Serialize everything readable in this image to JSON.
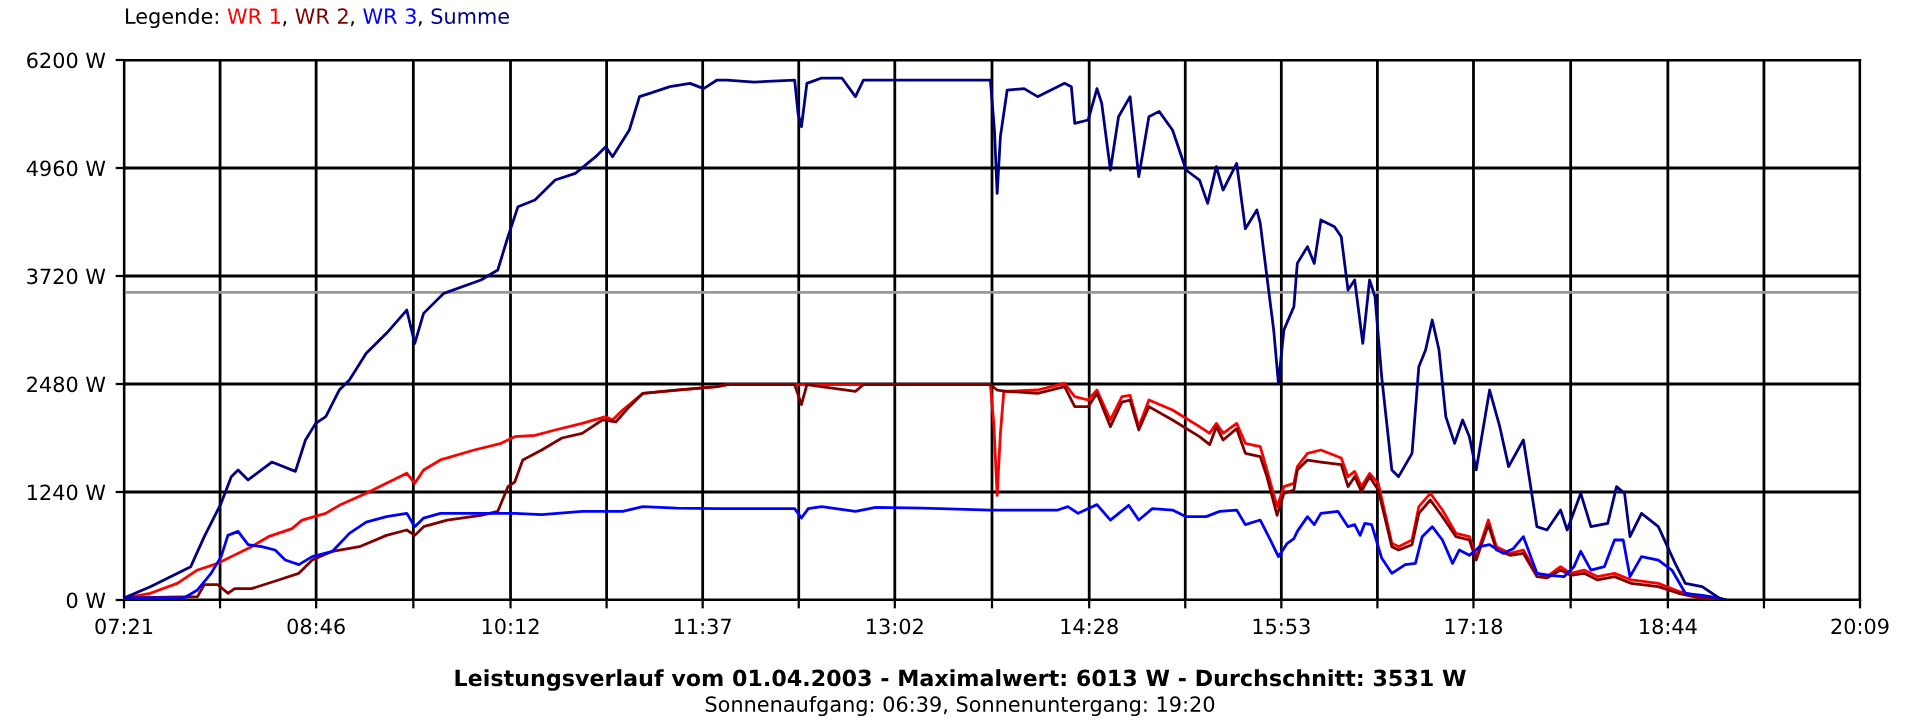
{
  "chart_data": {
    "type": "line",
    "title": "Leistungsverlauf vom 01.04.2003 - Maximalwert: 6013 W - Durchschnitt: 3531 W",
    "subtitle": "Sonnenaufgang: 06:39, Sonnenuntergang: 19:20",
    "legend_title": "Legende:",
    "annotations": [
      ",",
      ",",
      ","
    ],
    "legend": "top left",
    "grid": true,
    "marker": "none",
    "line_style": "solid",
    "xlim": [
      7.35,
      20.15
    ],
    "xticks": [
      {
        "value": 7.35,
        "label": "07:21"
      },
      {
        "value": 8.0583,
        "label": null
      },
      {
        "value": 8.7667,
        "label": "08:46"
      },
      {
        "value": 9.4833,
        "label": null
      },
      {
        "value": 10.2,
        "label": "10:12"
      },
      {
        "value": 10.9083,
        "label": null
      },
      {
        "value": 11.6167,
        "label": "11:37"
      },
      {
        "value": 12.325,
        "label": null
      },
      {
        "value": 13.0333,
        "label": "13:02"
      },
      {
        "value": 13.75,
        "label": null
      },
      {
        "value": 14.4667,
        "label": "14:28"
      },
      {
        "value": 15.175,
        "label": null
      },
      {
        "value": 15.8833,
        "label": "15:53"
      },
      {
        "value": 16.5917,
        "label": null
      },
      {
        "value": 17.3,
        "label": "17:18"
      },
      {
        "value": 18.0167,
        "label": null
      },
      {
        "value": 18.7333,
        "label": "18:44"
      },
      {
        "value": 19.4417,
        "label": null
      },
      {
        "value": 20.15,
        "label": "20:09"
      }
    ],
    "ylim": [
      0,
      6200
    ],
    "yticks": [
      {
        "value": 0,
        "label": "0 W"
      },
      {
        "value": 1240,
        "label": "1240 W"
      },
      {
        "value": 2480,
        "label": "2480 W"
      },
      {
        "value": 3720,
        "label": "3720 W"
      },
      {
        "value": 4960,
        "label": "4960 W"
      },
      {
        "value": 6200,
        "label": "6200 W"
      }
    ],
    "ref_lines": [
      {
        "axis": "y",
        "value": 3531,
        "color": "#999999"
      }
    ],
    "series": [
      {
        "name": "WR 1",
        "color": "#ff0000",
        "x": [
          7.35,
          7.544,
          7.743,
          7.892,
          8.041,
          8.141,
          8.29,
          8.415,
          8.589,
          8.663,
          8.837,
          8.937,
          9.136,
          9.285,
          9.435,
          9.494,
          9.559,
          9.683,
          9.932,
          10.131,
          10.231,
          10.38,
          10.529,
          10.728,
          10.902,
          10.952,
          11.027,
          11.176,
          11.425,
          11.723,
          11.797,
          12.295,
          12.345,
          12.743,
          13.738,
          13.763,
          13.788,
          13.812,
          13.837,
          14.086,
          14.285,
          14.36,
          14.459,
          14.524,
          14.623,
          14.708,
          14.768,
          14.832,
          14.907,
          15.081,
          15.28,
          15.355,
          15.404,
          15.454,
          15.554,
          15.618,
          15.728,
          15.777,
          15.852,
          15.902,
          15.976,
          16.001,
          16.076,
          16.175,
          16.325,
          16.375,
          16.424,
          16.474,
          16.534,
          16.598,
          16.698,
          16.748,
          16.847,
          16.897,
          16.982,
          17.071,
          17.171,
          17.27,
          17.32,
          17.41,
          17.469,
          17.569,
          17.668,
          17.768,
          17.842,
          17.942,
          18.016,
          18.116,
          18.215,
          18.34,
          18.464,
          18.663,
          18.812,
          18.962,
          19.111
        ],
        "values": [
          23,
          77,
          191,
          345,
          421,
          498,
          612,
          727,
          819,
          918,
          995,
          1087,
          1225,
          1340,
          1455,
          1340,
          1493,
          1608,
          1722,
          1799,
          1875,
          1891,
          1952,
          2028,
          2105,
          2067,
          2182,
          2373,
          2411,
          2449,
          2472,
          2472,
          2472,
          2472,
          2472,
          2028,
          1202,
          1914,
          2396,
          2411,
          2488,
          2334,
          2296,
          2411,
          2067,
          2334,
          2350,
          1990,
          2296,
          2181,
          1990,
          1914,
          2028,
          1914,
          2028,
          1799,
          1760,
          1493,
          1072,
          1301,
          1339,
          1531,
          1684,
          1722,
          1630,
          1416,
          1477,
          1301,
          1454,
          1339,
          651,
          612,
          689,
          1072,
          1225,
          1033,
          765,
          727,
          498,
          918,
          612,
          536,
          574,
          306,
          268,
          383,
          306,
          344,
          268,
          306,
          230,
          191,
          100,
          38,
          0
        ]
      },
      {
        "name": "WR 2",
        "color": "#800000",
        "x": [
          7.35,
          7.892,
          7.942,
          8.041,
          8.116,
          8.166,
          8.29,
          8.489,
          8.639,
          8.738,
          8.887,
          9.086,
          9.285,
          9.435,
          9.494,
          9.559,
          9.733,
          9.982,
          10.106,
          10.181,
          10.231,
          10.29,
          10.43,
          10.579,
          10.728,
          10.877,
          10.976,
          11.076,
          11.176,
          11.425,
          11.723,
          11.797,
          12.295,
          12.345,
          12.385,
          12.743,
          12.802,
          13.738,
          13.788,
          13.862,
          14.086,
          14.285,
          14.36,
          14.459,
          14.524,
          14.623,
          14.708,
          14.768,
          14.832,
          14.907,
          15.081,
          15.28,
          15.355,
          15.404,
          15.454,
          15.554,
          15.618,
          15.728,
          15.777,
          15.852,
          15.902,
          15.976,
          16.001,
          16.076,
          16.175,
          16.325,
          16.375,
          16.424,
          16.474,
          16.534,
          16.598,
          16.698,
          16.748,
          16.847,
          16.897,
          16.982,
          17.071,
          17.171,
          17.27,
          17.32,
          17.41,
          17.469,
          17.569,
          17.668,
          17.768,
          17.842,
          17.942,
          18.016,
          18.116,
          18.215,
          18.34,
          18.464,
          18.663,
          18.812,
          18.962,
          19.111
        ],
        "values": [
          23,
          38,
          176,
          176,
          77,
          130,
          130,
          230,
          306,
          459,
          559,
          612,
          742,
          804,
          742,
          842,
          918,
          972,
          1018,
          1301,
          1355,
          1608,
          1722,
          1860,
          1913,
          2067,
          2044,
          2220,
          2373,
          2411,
          2449,
          2472,
          2472,
          2243,
          2472,
          2396,
          2472,
          2472,
          2411,
          2396,
          2373,
          2449,
          2220,
          2220,
          2373,
          1990,
          2273,
          2296,
          1952,
          2220,
          2067,
          1875,
          1783,
          1990,
          1837,
          1967,
          1684,
          1646,
          1416,
          972,
          1225,
          1263,
          1493,
          1607,
          1584,
          1554,
          1301,
          1416,
          1248,
          1416,
          1263,
          612,
          574,
          635,
          995,
          1148,
          957,
          727,
          689,
          459,
          865,
          574,
          513,
          536,
          268,
          253,
          344,
          283,
          306,
          230,
          268,
          191,
          153,
          77,
          23,
          0
        ]
      },
      {
        "name": "WR 3",
        "color": "#0000ff",
        "x": [
          7.35,
          7.793,
          7.892,
          7.992,
          8.066,
          8.116,
          8.191,
          8.265,
          8.365,
          8.464,
          8.539,
          8.639,
          8.738,
          8.887,
          9.012,
          9.136,
          9.285,
          9.435,
          9.494,
          9.559,
          9.683,
          9.982,
          10.231,
          10.43,
          10.728,
          11.027,
          11.176,
          11.425,
          11.723,
          11.797,
          11.996,
          12.295,
          12.345,
          12.395,
          12.494,
          12.743,
          12.892,
          13.24,
          13.738,
          14.235,
          14.31,
          14.385,
          14.524,
          14.623,
          14.758,
          14.832,
          14.932,
          15.081,
          15.181,
          15.329,
          15.429,
          15.554,
          15.618,
          15.728,
          15.802,
          15.862,
          15.927,
          15.976,
          16.001,
          16.076,
          16.126,
          16.175,
          16.3,
          16.375,
          16.424,
          16.464,
          16.499,
          16.549,
          16.623,
          16.698,
          16.797,
          16.872,
          16.922,
          16.996,
          17.071,
          17.146,
          17.195,
          17.27,
          17.345,
          17.419,
          17.519,
          17.593,
          17.668,
          17.768,
          17.867,
          17.967,
          18.041,
          18.091,
          18.166,
          18.265,
          18.34,
          18.404,
          18.454,
          18.539,
          18.663,
          18.763,
          18.862,
          18.986,
          19.111,
          19.161
        ],
        "values": [
          23,
          23,
          115,
          306,
          498,
          742,
          788,
          635,
          612,
          574,
          459,
          406,
          498,
          559,
          765,
          895,
          957,
          995,
          842,
          941,
          995,
          995,
          995,
          980,
          1018,
          1018,
          1071,
          1056,
          1049,
          1049,
          1049,
          1049,
          941,
          1049,
          1072,
          1018,
          1064,
          1056,
          1033,
          1033,
          1072,
          995,
          1095,
          918,
          1087,
          918,
          1049,
          1033,
          957,
          957,
          1018,
          1033,
          865,
          918,
          689,
          498,
          651,
          704,
          788,
          957,
          865,
          995,
          1018,
          842,
          865,
          742,
          880,
          865,
          482,
          306,
          406,
          421,
          727,
          842,
          689,
          421,
          574,
          513,
          612,
          635,
          536,
          589,
          727,
          306,
          283,
          268,
          383,
          559,
          344,
          383,
          689,
          689,
          268,
          498,
          459,
          344,
          77,
          54,
          23,
          0
        ]
      },
      {
        "name": "Summe",
        "color": "#000080",
        "x": [
          7.35,
          7.544,
          7.693,
          7.842,
          7.942,
          8.066,
          8.141,
          8.191,
          8.265,
          8.44,
          8.614,
          8.688,
          8.763,
          8.838,
          8.937,
          9.012,
          9.136,
          9.285,
          9.435,
          9.494,
          9.559,
          9.708,
          9.982,
          10.106,
          10.181,
          10.255,
          10.38,
          10.529,
          10.678,
          10.828,
          10.902,
          10.952,
          11.076,
          11.151,
          11.226,
          11.375,
          11.524,
          11.624,
          11.723,
          11.797,
          11.996,
          12.295,
          12.32,
          12.345,
          12.385,
          12.494,
          12.643,
          12.743,
          12.802,
          13.141,
          13.489,
          13.738,
          13.768,
          13.788,
          13.812,
          13.862,
          13.987,
          14.086,
          14.285,
          14.335,
          14.36,
          14.459,
          14.524,
          14.559,
          14.623,
          14.683,
          14.768,
          14.832,
          14.907,
          14.982,
          15.081,
          15.181,
          15.28,
          15.34,
          15.404,
          15.454,
          15.554,
          15.618,
          15.703,
          15.728,
          15.777,
          15.827,
          15.862,
          15.902,
          15.976,
          16.001,
          16.076,
          16.126,
          16.175,
          16.275,
          16.325,
          16.375,
          16.424,
          16.484,
          16.534,
          16.574,
          16.623,
          16.698,
          16.748,
          16.847,
          16.897,
          16.947,
          16.996,
          17.046,
          17.096,
          17.161,
          17.22,
          17.27,
          17.32,
          17.419,
          17.494,
          17.559,
          17.668,
          17.768,
          17.842,
          17.942,
          17.991,
          18.091,
          18.166,
          18.29,
          18.355,
          18.414,
          18.454,
          18.539,
          18.663,
          18.787,
          18.862,
          18.986,
          19.111,
          19.161
        ],
        "values": [
          23,
          153,
          268,
          383,
          727,
          1110,
          1416,
          1493,
          1378,
          1584,
          1477,
          1837,
          2028,
          2105,
          2411,
          2526,
          2832,
          3062,
          3329,
          2947,
          3291,
          3521,
          3674,
          3789,
          4171,
          4516,
          4592,
          4822,
          4899,
          5090,
          5205,
          5090,
          5396,
          5779,
          5817,
          5894,
          5932,
          5871,
          5970,
          5970,
          5947,
          5970,
          5587,
          5434,
          5932,
          5993,
          5993,
          5779,
          5970,
          5970,
          5970,
          5970,
          5396,
          4669,
          5320,
          5855,
          5871,
          5779,
          5932,
          5894,
          5473,
          5511,
          5871,
          5702,
          4937,
          5549,
          5779,
          4860,
          5549,
          5610,
          5396,
          4937,
          4822,
          4554,
          4975,
          4707,
          5013,
          4263,
          4478,
          4324,
          3712,
          3100,
          2488,
          3100,
          3368,
          3865,
          4057,
          3865,
          4363,
          4286,
          4171,
          3559,
          3674,
          2947,
          3674,
          3483,
          2564,
          1493,
          1416,
          1684,
          2679,
          2870,
          3215,
          2870,
          2105,
          1799,
          2067,
          1875,
          1493,
          2411,
          1990,
          1531,
          1837,
          842,
          804,
          1033,
          804,
          1225,
          842,
          880,
          1301,
          1225,
          727,
          995,
          842,
          421,
          191,
          153,
          23,
          0
        ]
      }
    ]
  }
}
